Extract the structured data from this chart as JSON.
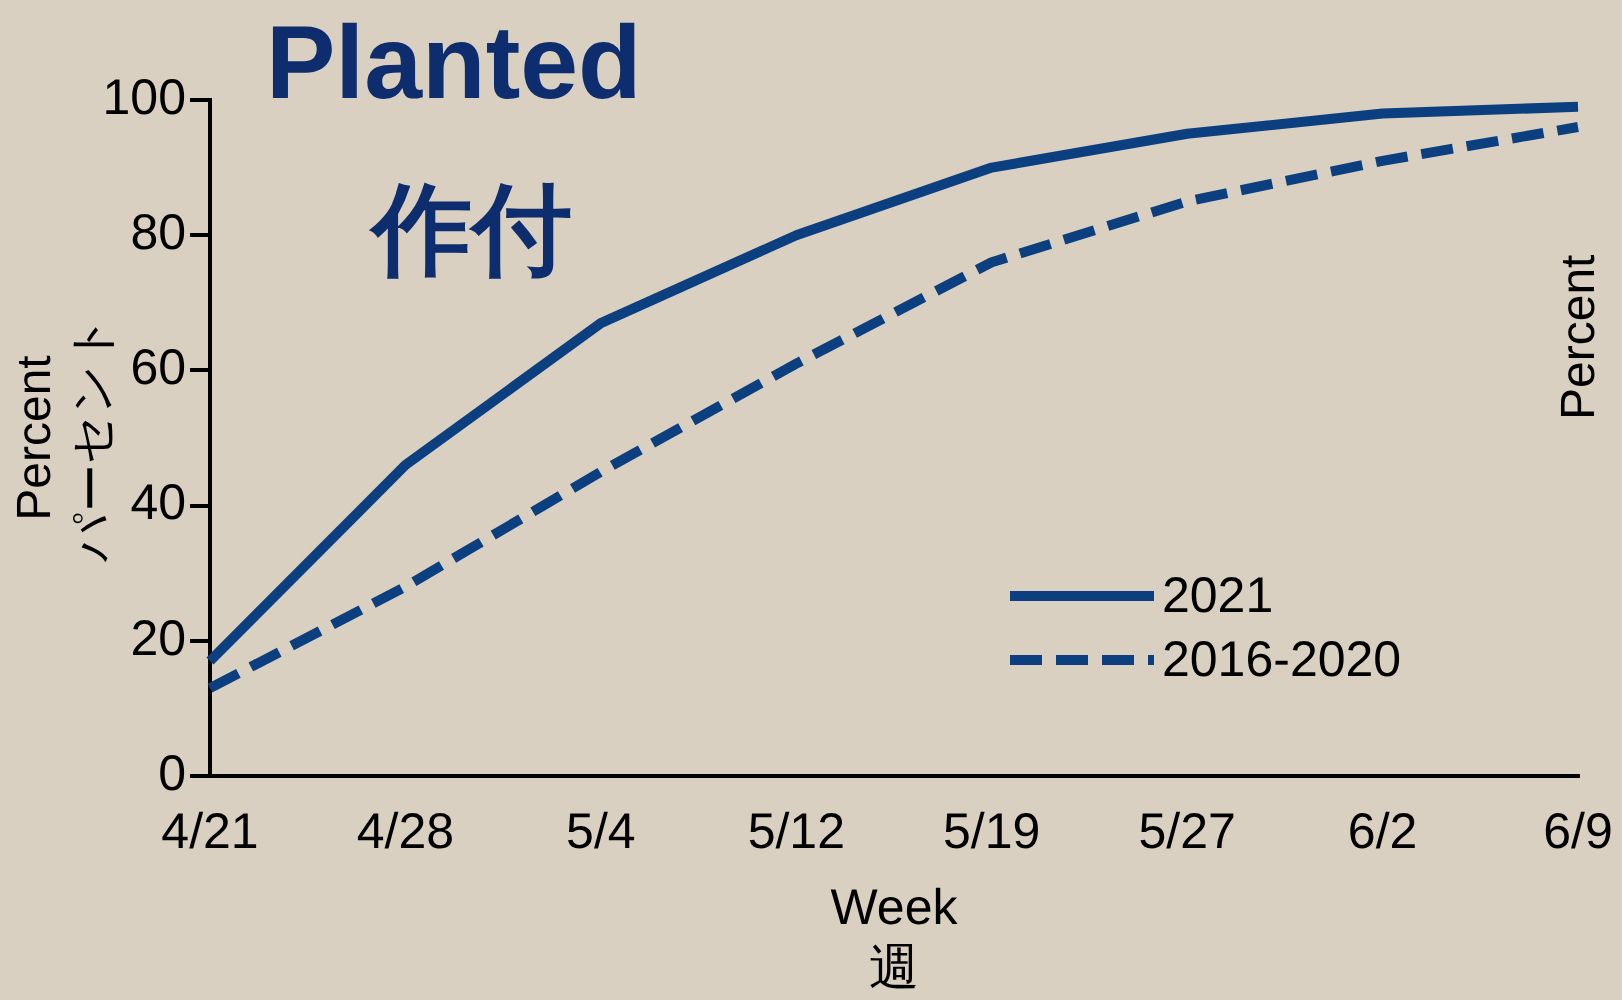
{
  "chart_data": {
    "type": "line",
    "title": "Planted",
    "subtitle": "作付",
    "xlabel": "Week\n週",
    "ylabel": "Percent\nパーセント",
    "categories": [
      "4/21",
      "4/28",
      "5/4",
      "5/12",
      "5/19",
      "5/27",
      "6/2",
      "6/9"
    ],
    "series": [
      {
        "name": "2021",
        "color": "#0b3f7f",
        "values": [
          17,
          46,
          67,
          80,
          90,
          95,
          98,
          99
        ],
        "line_style": "solid"
      },
      {
        "name": "2016-2020",
        "color": "#0b3f7f",
        "values": [
          13,
          28,
          45,
          61,
          76,
          85,
          91,
          96
        ],
        "line_style": "dashed"
      }
    ],
    "ylim": [
      0,
      100
    ],
    "yticks": [
      0,
      20,
      40,
      60,
      80,
      100
    ],
    "grid": false,
    "legend": "bottom right",
    "marker": "none",
    "annotations": [
      "Percent"
    ]
  }
}
